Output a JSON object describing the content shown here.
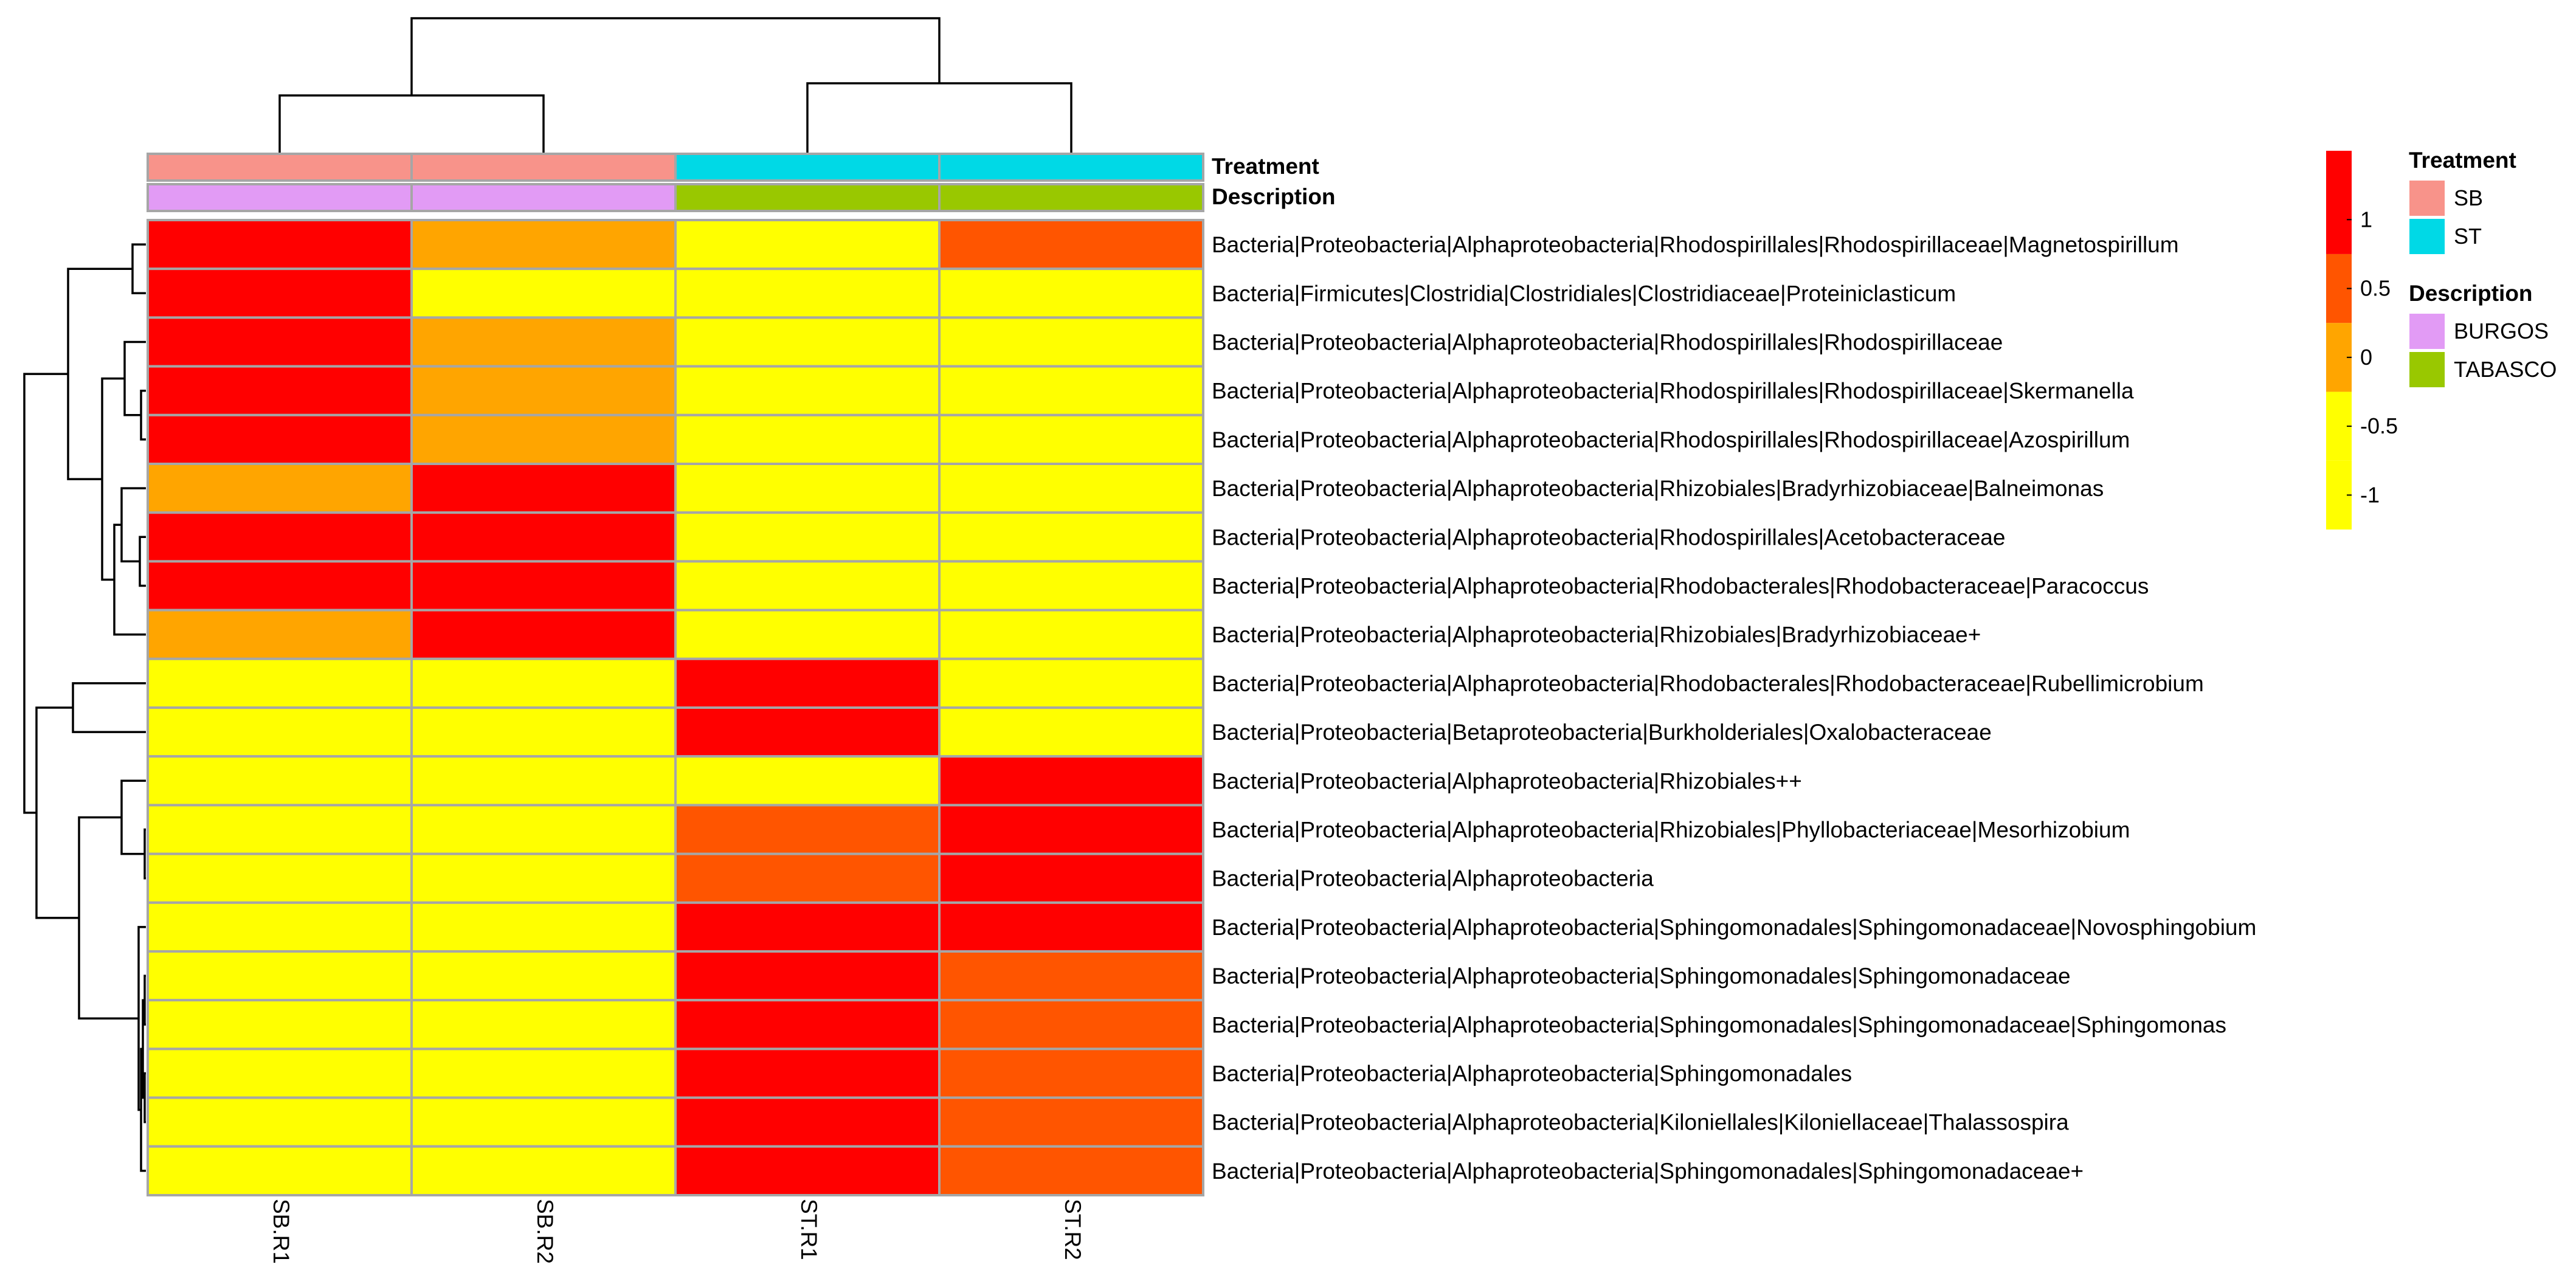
{
  "chart_data": {
    "type": "heatmap",
    "columns": [
      "SB.R1",
      "SB.R2",
      "ST.R1",
      "ST.R2"
    ],
    "rows": [
      "Bacteria|Proteobacteria|Alphaproteobacteria|Rhodospirillales|Rhodospirillaceae|Magnetospirillum",
      "Bacteria|Firmicutes|Clostridia|Clostridiales|Clostridiaceae|Proteiniclasticum",
      "Bacteria|Proteobacteria|Alphaproteobacteria|Rhodospirillales|Rhodospirillaceae",
      "Bacteria|Proteobacteria|Alphaproteobacteria|Rhodospirillales|Rhodospirillaceae|Skermanella",
      "Bacteria|Proteobacteria|Alphaproteobacteria|Rhodospirillales|Rhodospirillaceae|Azospirillum",
      "Bacteria|Proteobacteria|Alphaproteobacteria|Rhizobiales|Bradyrhizobiaceae|Balneimonas",
      "Bacteria|Proteobacteria|Alphaproteobacteria|Rhodospirillales|Acetobacteraceae",
      "Bacteria|Proteobacteria|Alphaproteobacteria|Rhodobacterales|Rhodobacteraceae|Paracoccus",
      "Bacteria|Proteobacteria|Alphaproteobacteria|Rhizobiales|Bradyrhizobiaceae+",
      "Bacteria|Proteobacteria|Alphaproteobacteria|Rhodobacterales|Rhodobacteraceae|Rubellimicrobium",
      "Bacteria|Proteobacteria|Betaproteobacteria|Burkholderiales|Oxalobacteraceae",
      "Bacteria|Proteobacteria|Alphaproteobacteria|Rhizobiales++",
      "Bacteria|Proteobacteria|Alphaproteobacteria|Rhizobiales|Phyllobacteriaceae|Mesorhizobium",
      "Bacteria|Proteobacteria|Alphaproteobacteria",
      "Bacteria|Proteobacteria|Alphaproteobacteria|Sphingomonadales|Sphingomonadaceae|Novosphingobium",
      "Bacteria|Proteobacteria|Alphaproteobacteria|Sphingomonadales|Sphingomonadaceae",
      "Bacteria|Proteobacteria|Alphaproteobacteria|Sphingomonadales|Sphingomonadaceae|Sphingomonas",
      "Bacteria|Proteobacteria|Alphaproteobacteria|Sphingomonadales",
      "Bacteria|Proteobacteria|Alphaproteobacteria|Kiloniellales|Kiloniellaceae|Thalassospira",
      "Bacteria|Proteobacteria|Alphaproteobacteria|Sphingomonadales|Sphingomonadaceae+"
    ],
    "values": [
      [
        1.3,
        -0.2,
        -1.2,
        0.4
      ],
      [
        1.3,
        -0.3,
        -0.3,
        -0.3
      ],
      [
        1.3,
        0.2,
        -1.2,
        -0.3
      ],
      [
        1.3,
        0.2,
        -1.2,
        -1.2
      ],
      [
        1.3,
        0.2,
        -1.2,
        -1.2
      ],
      [
        0.2,
        1.3,
        -1.2,
        -1.2
      ],
      [
        1.3,
        1.3,
        -1.2,
        -1.2
      ],
      [
        1.3,
        1.3,
        -1.2,
        -1.2
      ],
      [
        0.2,
        1.3,
        -1.2,
        -1.2
      ],
      [
        -0.3,
        -0.3,
        1.3,
        -1.2
      ],
      [
        -0.3,
        -0.3,
        1.3,
        -0.3
      ],
      [
        -1.2,
        -0.3,
        -0.3,
        1.3
      ],
      [
        -1.2,
        -1.2,
        0.3,
        1.3
      ],
      [
        -1.2,
        -1.2,
        0.3,
        1.3
      ],
      [
        -1.2,
        -1.2,
        1.3,
        1.3
      ],
      [
        -1.2,
        -1.2,
        1.3,
        0.3
      ],
      [
        -1.2,
        -1.2,
        1.3,
        0.3
      ],
      [
        -1.2,
        -1.2,
        1.3,
        0.3
      ],
      [
        -1.2,
        -1.2,
        1.3,
        0.3
      ],
      [
        -1.2,
        -1.2,
        1.3,
        0.3
      ]
    ],
    "color_scale": {
      "breaks": [
        -1.25,
        -0.75,
        -0.25,
        0.25,
        0.75,
        1.5
      ],
      "colors": [
        "#ffff00",
        "#ffff00",
        "#ffa500",
        "#ff5500",
        "#ff0000"
      ],
      "ticks": [
        1,
        0.5,
        0,
        -0.5,
        -1
      ],
      "tick_labels": [
        "1",
        "0.5",
        "0",
        "-0.5",
        "-1"
      ]
    },
    "annotations": [
      {
        "title": "Treatment",
        "values": [
          "SB",
          "SB",
          "ST",
          "ST"
        ],
        "legend": [
          {
            "label": "SB",
            "color": "#f8938a"
          },
          {
            "label": "ST",
            "color": "#00d9e6"
          }
        ]
      },
      {
        "title": "Description",
        "values": [
          "BURGOS",
          "BURGOS",
          "TABASCO",
          "TABASCO"
        ],
        "legend": [
          {
            "label": "BURGOS",
            "color": "#e29bf5"
          },
          {
            "label": "TABASCO",
            "color": "#99c800"
          }
        ]
      }
    ],
    "column_dendrogram": [
      [
        0,
        1
      ],
      [
        2,
        3
      ],
      [
        [
          0,
          1
        ],
        [
          2,
          3
        ]
      ]
    ],
    "row_dendrogram_note": "hierarchical clustering of rows",
    "legend_position": "right"
  }
}
